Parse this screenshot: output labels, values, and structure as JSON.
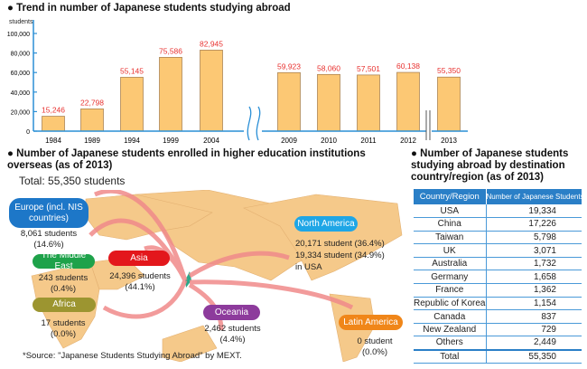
{
  "chart_data": {
    "type": "bar",
    "title": "Trend in number of Japanese students studying abroad",
    "ylabel": "students",
    "ylim": [
      0,
      100000
    ],
    "yticks": [
      "0",
      "20,000",
      "40,000",
      "60,000",
      "80,000",
      "100,000"
    ],
    "categories": [
      "1984",
      "1989",
      "1994",
      "1999",
      "2004",
      "2009",
      "2010",
      "2011",
      "2012",
      "2013"
    ],
    "values": [
      15246,
      22798,
      55145,
      75586,
      82945,
      59923,
      58060,
      57501,
      60138,
      55350
    ],
    "labels": [
      "15,246",
      "22,798",
      "55,145",
      "75,586",
      "82,945",
      "59,923",
      "58,060",
      "57,501",
      "60,138",
      "55,350"
    ],
    "bar_color": "#fcc874",
    "label_color": "#e8312f",
    "axis_color": "#2a8fd6"
  },
  "map": {
    "title": "Number of Japanese students enrolled in higher education institutions overseas (as of 2013)",
    "total": "Total: 55,350 students",
    "regions": [
      {
        "name": "Europe (incl. NIS countries)",
        "line1": "8,061 students",
        "line2": "(14.6%)",
        "color": "#1d77c8"
      },
      {
        "name": "The Middle East",
        "line1": "243 students",
        "line2": "(0.4%)",
        "color": "#1ea24a"
      },
      {
        "name": "Africa",
        "line1": "17 students",
        "line2": "(0.0%)",
        "color": "#9c9530"
      },
      {
        "name": "Asia",
        "line1": "24,396 students",
        "line2": "(44.1%)",
        "color": "#e3171c"
      },
      {
        "name": "Oceania",
        "line1": "2,462 students",
        "line2": "(4.4%)",
        "color": "#8d3b9c"
      },
      {
        "name": "North America",
        "line1": "20,171 student (36.4%)",
        "line2": "19,334 student (34.9%)",
        "line3": "in USA",
        "color": "#1fa6e6"
      },
      {
        "name": "Latin America",
        "line1": "0 student",
        "line2": "(0.0%)",
        "color": "#f08619"
      }
    ],
    "source": "*Source: \"Japanese Students Studying Abroad\" by MEXT."
  },
  "table": {
    "title": "Number of Japanese students studying abroad by destination country/region (as of 2013)",
    "headers": [
      "Country/Region",
      "Number of Japanese Students"
    ],
    "rows": [
      [
        "USA",
        "19,334"
      ],
      [
        "China",
        "17,226"
      ],
      [
        "Taiwan",
        "5,798"
      ],
      [
        "UK",
        "3,071"
      ],
      [
        "Australia",
        "1,732"
      ],
      [
        "Germany",
        "1,658"
      ],
      [
        "France",
        "1,362"
      ],
      [
        "Republic of Korea",
        "1,154"
      ],
      [
        "Canada",
        "837"
      ],
      [
        "New Zealand",
        "729"
      ],
      [
        "Others",
        "2,449"
      ]
    ],
    "total": [
      "Total",
      "55,350"
    ]
  }
}
